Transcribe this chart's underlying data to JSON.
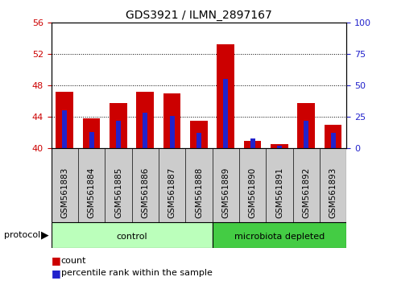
{
  "title": "GDS3921 / ILMN_2897167",
  "samples": [
    "GSM561883",
    "GSM561884",
    "GSM561885",
    "GSM561886",
    "GSM561887",
    "GSM561888",
    "GSM561889",
    "GSM561890",
    "GSM561891",
    "GSM561892",
    "GSM561893"
  ],
  "count_values": [
    47.2,
    43.8,
    45.8,
    47.2,
    47.0,
    43.5,
    53.3,
    40.9,
    40.5,
    45.8,
    43.0
  ],
  "percentile_values": [
    30,
    13,
    22,
    28,
    26,
    12,
    55,
    8,
    2,
    22,
    12
  ],
  "ylim_left": [
    40,
    56
  ],
  "ylim_right": [
    0,
    100
  ],
  "yticks_left": [
    40,
    44,
    48,
    52,
    56
  ],
  "yticks_right": [
    0,
    25,
    50,
    75,
    100
  ],
  "bar_color_red": "#cc0000",
  "bar_color_blue": "#2222cc",
  "bar_bottom": 40,
  "bar_width": 0.65,
  "blue_bar_width": 0.18,
  "control_indices": [
    0,
    1,
    2,
    3,
    4,
    5
  ],
  "microbiota_indices": [
    6,
    7,
    8,
    9,
    10
  ],
  "control_label": "control",
  "microbiota_label": "microbiota depleted",
  "control_color": "#bbffbb",
  "microbiota_color": "#44cc44",
  "protocol_label": "protocol",
  "legend_count_label": "count",
  "legend_pct_label": "percentile rank within the sample",
  "tick_color_left": "#cc0000",
  "tick_color_right": "#2222cc",
  "grid_linestyle": ":",
  "grid_color": "#000000",
  "sample_box_color": "#cccccc",
  "title_fontsize": 10,
  "axis_fontsize": 8,
  "label_fontsize": 7.5,
  "legend_fontsize": 8
}
